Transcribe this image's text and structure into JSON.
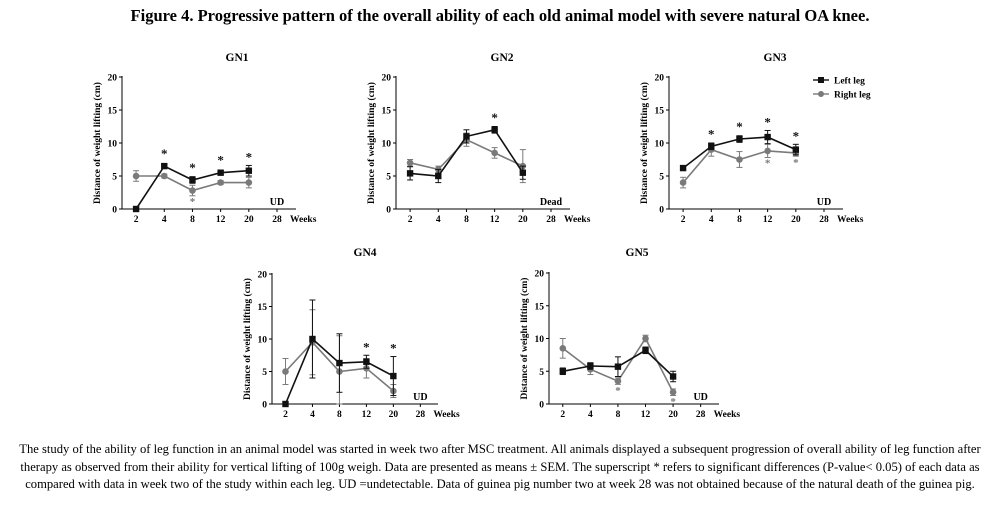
{
  "figure": {
    "title": "Figure 4. Progressive pattern of the overall ability of each old animal model with severe natural OA knee.",
    "caption": "The study of the ability of leg function in an animal model was started in week two after MSC treatment. All animals displayed a subsequent progression of overall ability of leg function after therapy as observed from their ability for vertical lifting of 100g weigh. Data are presented as means ± SEM. The superscript * refers to significant differences (P-value< 0.05) of each data as compared with data in week two of the study within each leg. UD =undetectable. Data of guinea pig number two at week 28 was not obtained because of the natural death of the guinea pig."
  },
  "colors": {
    "left": "#111111",
    "right": "#7a7a7a",
    "axis": "#000000"
  },
  "chart_data": [
    {
      "type": "line",
      "title": "GN1",
      "xlabel": "Weeks",
      "ylabel": "Distance of weight lifting (cm)",
      "categories": [
        "2",
        "4",
        "8",
        "12",
        "20",
        "28"
      ],
      "ylim": [
        0,
        20
      ],
      "yticks": [
        0,
        5,
        10,
        15,
        20
      ],
      "series": [
        {
          "name": "Left leg",
          "marker": "square",
          "values": [
            0,
            6.5,
            4.4,
            5.5,
            5.8,
            null
          ],
          "err": [
            0,
            0.3,
            0.5,
            0.3,
            0.8,
            0
          ],
          "sig": [
            "",
            "*",
            "*",
            "*",
            "*",
            ""
          ]
        },
        {
          "name": "Right leg",
          "marker": "circle",
          "values": [
            5.0,
            5.0,
            2.8,
            4.0,
            4.0,
            null
          ],
          "err": [
            0.8,
            0.3,
            0.8,
            0.3,
            0.8,
            0
          ],
          "sig": [
            "",
            "",
            "*",
            "",
            "",
            ""
          ]
        }
      ],
      "annotations": [
        {
          "text": "UD",
          "x": "28"
        }
      ]
    },
    {
      "type": "line",
      "title": "GN2",
      "xlabel": "Weeks",
      "ylabel": "Distance of weight lifting (cm)",
      "categories": [
        "2",
        "4",
        "8",
        "12",
        "20",
        "28"
      ],
      "ylim": [
        0,
        20
      ],
      "yticks": [
        0,
        5,
        10,
        15,
        20
      ],
      "series": [
        {
          "name": "Left leg",
          "marker": "square",
          "values": [
            5.4,
            5.0,
            11.0,
            12.0,
            5.5,
            null
          ],
          "err": [
            1.0,
            1.0,
            1.0,
            0.5,
            1.0,
            0
          ],
          "sig": [
            "",
            "",
            "",
            "*",
            "",
            ""
          ]
        },
        {
          "name": "Right leg",
          "marker": "circle",
          "values": [
            7.0,
            6.0,
            10.5,
            8.5,
            6.5,
            null
          ],
          "err": [
            0.5,
            0.5,
            1.0,
            0.8,
            2.5,
            0
          ],
          "sig": [
            "",
            "",
            "",
            "",
            "",
            ""
          ]
        }
      ],
      "annotations": [
        {
          "text": "Dead",
          "x": "28"
        }
      ]
    },
    {
      "type": "line",
      "title": "GN3",
      "xlabel": "Weeks",
      "ylabel": "Distance of weight lifting (cm)",
      "categories": [
        "2",
        "4",
        "8",
        "12",
        "20",
        "28"
      ],
      "ylim": [
        0,
        20
      ],
      "yticks": [
        0,
        5,
        10,
        15,
        20
      ],
      "legend": {
        "position": "top-right",
        "entries": [
          "Left leg",
          "Right leg"
        ]
      },
      "series": [
        {
          "name": "Left leg",
          "marker": "square",
          "values": [
            6.2,
            9.5,
            10.6,
            10.9,
            9.0,
            null
          ],
          "err": [
            0.3,
            0.5,
            0.5,
            1.0,
            0.8,
            0
          ],
          "sig": [
            "",
            "*",
            "*",
            "*",
            "*",
            ""
          ]
        },
        {
          "name": "Right leg",
          "marker": "circle",
          "values": [
            4.0,
            9.0,
            7.5,
            8.8,
            8.5,
            null
          ],
          "err": [
            0.8,
            1.0,
            1.2,
            1.0,
            0.5,
            0
          ],
          "sig": [
            "",
            "",
            "",
            "*",
            "*",
            ""
          ]
        }
      ],
      "annotations": [
        {
          "text": "UD",
          "x": "28"
        }
      ]
    },
    {
      "type": "line",
      "title": "GN4",
      "xlabel": "Weeks",
      "ylabel": "Distance of weight lifting (cm)",
      "categories": [
        "2",
        "4",
        "8",
        "12",
        "20",
        "28"
      ],
      "ylim": [
        0,
        20
      ],
      "yticks": [
        0,
        5,
        10,
        15,
        20
      ],
      "series": [
        {
          "name": "Left leg",
          "marker": "square",
          "values": [
            0,
            10.0,
            6.3,
            6.5,
            4.3,
            null
          ],
          "err": [
            0,
            6.0,
            4.5,
            1.0,
            3.0,
            0
          ],
          "sig": [
            "",
            "",
            "",
            "*",
            "*",
            ""
          ]
        },
        {
          "name": "Right leg",
          "marker": "circle",
          "values": [
            5.0,
            9.5,
            5.0,
            5.5,
            2.0,
            null
          ],
          "err": [
            2.0,
            5.0,
            5.5,
            1.5,
            1.0,
            0
          ],
          "sig": [
            "",
            "",
            "",
            "",
            "",
            ""
          ]
        }
      ],
      "annotations": [
        {
          "text": "UD",
          "x": "28"
        }
      ]
    },
    {
      "type": "line",
      "title": "GN5",
      "xlabel": "Weeks",
      "ylabel": "Distance of weight lifting (cm)",
      "categories": [
        "2",
        "4",
        "8",
        "12",
        "20",
        "28"
      ],
      "ylim": [
        0,
        20
      ],
      "yticks": [
        0,
        5,
        10,
        15,
        20
      ],
      "series": [
        {
          "name": "Left leg",
          "marker": "square",
          "values": [
            5.0,
            5.8,
            5.7,
            8.2,
            4.2,
            null
          ],
          "err": [
            0.5,
            0.5,
            1.5,
            0.5,
            0.8,
            0
          ],
          "sig": [
            "",
            "",
            "",
            "",
            "",
            ""
          ]
        },
        {
          "name": "Right leg",
          "marker": "circle",
          "values": [
            8.5,
            5.3,
            3.5,
            10.0,
            1.8,
            null
          ],
          "err": [
            1.5,
            0.8,
            0.5,
            0.5,
            0.5,
            0
          ],
          "sig": [
            "",
            "",
            "*",
            "",
            "*",
            ""
          ]
        }
      ],
      "annotations": [
        {
          "text": "UD",
          "x": "28"
        }
      ]
    }
  ]
}
